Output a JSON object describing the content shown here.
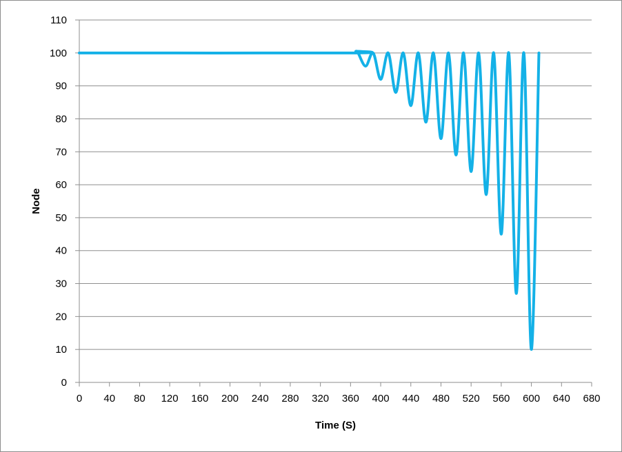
{
  "chart_data": {
    "type": "line",
    "xlabel": "Time (S)",
    "ylabel": "Node",
    "xlim": [
      0,
      680
    ],
    "ylim": [
      0,
      110
    ],
    "x_ticks": [
      0,
      40,
      80,
      120,
      160,
      200,
      240,
      280,
      320,
      360,
      400,
      440,
      480,
      520,
      560,
      600,
      640,
      680
    ],
    "y_ticks": [
      0,
      10,
      20,
      30,
      40,
      50,
      60,
      70,
      80,
      90,
      100,
      110
    ],
    "grid": "horizontal",
    "legend": "none",
    "series": [
      {
        "color": "#14b1e7",
        "points": [
          [
            0,
            100
          ],
          [
            360,
            100
          ],
          [
            367,
            100.5
          ],
          [
            370,
            100
          ],
          [
            380,
            96
          ],
          [
            390,
            100
          ],
          [
            400,
            92
          ],
          [
            410,
            100
          ],
          [
            420,
            88
          ],
          [
            430,
            100
          ],
          [
            440,
            84
          ],
          [
            450,
            100
          ],
          [
            460,
            79
          ],
          [
            470,
            100
          ],
          [
            480,
            74
          ],
          [
            490,
            100
          ],
          [
            500,
            69
          ],
          [
            510,
            100
          ],
          [
            520,
            64
          ],
          [
            530,
            100
          ],
          [
            540,
            57
          ],
          [
            550,
            100
          ],
          [
            560,
            45
          ],
          [
            570,
            100
          ],
          [
            580,
            27
          ],
          [
            590,
            100
          ],
          [
            600,
            10
          ],
          [
            610,
            100
          ]
        ]
      }
    ]
  }
}
